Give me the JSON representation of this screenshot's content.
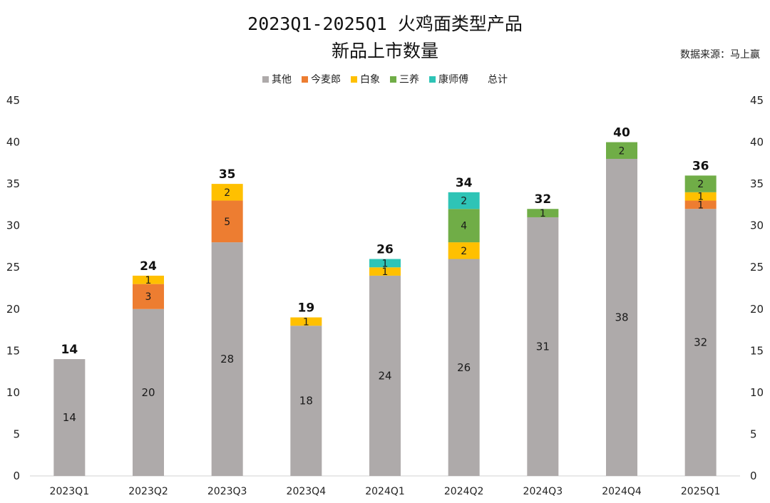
{
  "title_line1": "2023Q1-2025Q1 火鸡面类型产品",
  "title_line2": "新品上市数量",
  "source": "数据来源：马上赢",
  "chart_data": {
    "type": "bar",
    "stacked": true,
    "title": "2023Q1-2025Q1 火鸡面类型产品 新品上市数量",
    "categories": [
      "2023Q1",
      "2023Q2",
      "2023Q3",
      "2023Q4",
      "2024Q1",
      "2024Q2",
      "2024Q3",
      "2024Q4",
      "2025Q1"
    ],
    "series": [
      {
        "name": "其他",
        "color": "#aeaaaa",
        "values": [
          14,
          20,
          28,
          18,
          24,
          26,
          31,
          38,
          32
        ]
      },
      {
        "name": "今麦郎",
        "color": "#ed7d31",
        "values": [
          0,
          3,
          5,
          0,
          0,
          0,
          0,
          0,
          1
        ]
      },
      {
        "name": "白象",
        "color": "#ffc000",
        "values": [
          0,
          1,
          2,
          1,
          1,
          2,
          0,
          0,
          1
        ]
      },
      {
        "name": "三养",
        "color": "#70ad47",
        "values": [
          0,
          0,
          0,
          0,
          0,
          4,
          1,
          2,
          2
        ]
      },
      {
        "name": "康师傅",
        "color": "#2ec4b6",
        "values": [
          0,
          0,
          0,
          0,
          1,
          2,
          0,
          0,
          0
        ]
      }
    ],
    "totals_label": "总计",
    "totals": [
      14,
      24,
      35,
      19,
      26,
      34,
      32,
      40,
      36
    ],
    "ylim": [
      0,
      45
    ],
    "yticks": [
      0,
      5,
      10,
      15,
      20,
      25,
      30,
      35,
      40,
      45
    ],
    "grid": false,
    "legend_position": "top-center",
    "secondary_y_axis": true
  }
}
